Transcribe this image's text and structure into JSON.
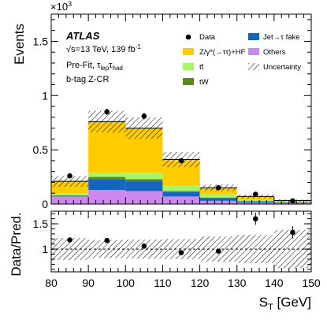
{
  "chart_data": [
    {
      "type": "bar",
      "stacked": true,
      "x_bin_edges": [
        80,
        90,
        100,
        110,
        120,
        130,
        140,
        150
      ],
      "xlim": [
        80,
        150
      ],
      "ylim": [
        0,
        1.75
      ],
      "ylabel": "Events",
      "y_multiplier": "×10",
      "y_multiplier_exp": "3",
      "yticks": [
        0,
        0.5,
        1,
        1.5
      ],
      "ytick_labels": [
        "0",
        "0.5",
        "1",
        "1.5"
      ],
      "annotations": {
        "atlas": "ATLAS",
        "energy_prefix": "√s=13 TeV, 139 fb",
        "energy_sup": "-1",
        "fit": "Pre-Fit, τ",
        "fit_sub1": "lep",
        "fit_mid": "τ",
        "fit_sub2": "had",
        "region": "b-tag Z-CR"
      },
      "series": [
        {
          "name": "Others",
          "color": "#cc88ee",
          "values": [
            0.07,
            0.13,
            0.12,
            0.07,
            0.03,
            0.015,
            0.01
          ]
        },
        {
          "name": "Jet→τ fake",
          "color": "#1565c0",
          "values": [
            0.005,
            0.1,
            0.09,
            0.04,
            0.025,
            0.01,
            0.006
          ]
        },
        {
          "name": "tW",
          "color": "#5a8a1a",
          "values": [
            0.005,
            0.02,
            0.02,
            0.01,
            0.005,
            0.003,
            0.002
          ]
        },
        {
          "name": "tt̄",
          "color": "#a6f56a",
          "values": [
            0.02,
            0.04,
            0.06,
            0.05,
            0.03,
            0.01,
            0.01
          ]
        },
        {
          "name": "Z/γ*(→ττ)+HF",
          "color": "#ffcc00",
          "values": [
            0.11,
            0.47,
            0.41,
            0.24,
            0.06,
            0.032,
            0.005
          ]
        }
      ],
      "uncertainty_abs": [
        0.05,
        0.1,
        0.1,
        0.07,
        0.03,
        0.02,
        0.01
      ],
      "data": {
        "name": "Data",
        "x": [
          85,
          95,
          105,
          115,
          125,
          135,
          145
        ],
        "y": [
          0.26,
          0.85,
          0.81,
          0.4,
          0.15,
          0.09,
          0.03
        ],
        "yerr": [
          0.02,
          0.03,
          0.03,
          0.02,
          0.013,
          0.01,
          0.006
        ]
      },
      "legend": {
        "placement": "top-right",
        "entries": [
          {
            "key": "data",
            "label": "Data"
          },
          {
            "key": "jetfake",
            "label": "Jet→τ fake",
            "color": "#1565c0"
          },
          {
            "key": "zhf",
            "label": "Z/γ*(→ττ)+HF",
            "color": "#ffcc00"
          },
          {
            "key": "others",
            "label": "Others",
            "color": "#cc88ee"
          },
          {
            "key": "ttbar",
            "label": "tt̄",
            "color": "#a6f56a"
          },
          {
            "key": "unc",
            "label": "Uncertainty"
          },
          {
            "key": "tw",
            "label": "tW",
            "color": "#5a8a1a"
          }
        ]
      }
    },
    {
      "type": "scatter",
      "xlabel": "S",
      "xlabel_sub": "T",
      "xlabel_unit": " [GeV]",
      "ylabel": "Data/Pred.",
      "xlim": [
        80,
        150
      ],
      "ylim": [
        0.55,
        1.75
      ],
      "xticks": [
        80,
        90,
        100,
        110,
        120,
        130,
        140,
        150
      ],
      "xtick_labels": [
        "80",
        "90",
        "100",
        "110",
        "120",
        "130",
        "140",
        "150"
      ],
      "yticks": [
        1,
        1.5
      ],
      "ytick_labels": [
        "1",
        "1.5"
      ],
      "reference_line": 1,
      "x": [
        85,
        95,
        105,
        115,
        125,
        135,
        145
      ],
      "y": [
        1.18,
        1.17,
        1.06,
        0.93,
        0.96,
        1.6,
        1.33
      ],
      "yerr": [
        0.05,
        0.04,
        0.04,
        0.05,
        0.05,
        0.12,
        0.12
      ],
      "band_rel": [
        0.22,
        0.18,
        0.19,
        0.2,
        0.25,
        0.28,
        0.38
      ]
    }
  ]
}
